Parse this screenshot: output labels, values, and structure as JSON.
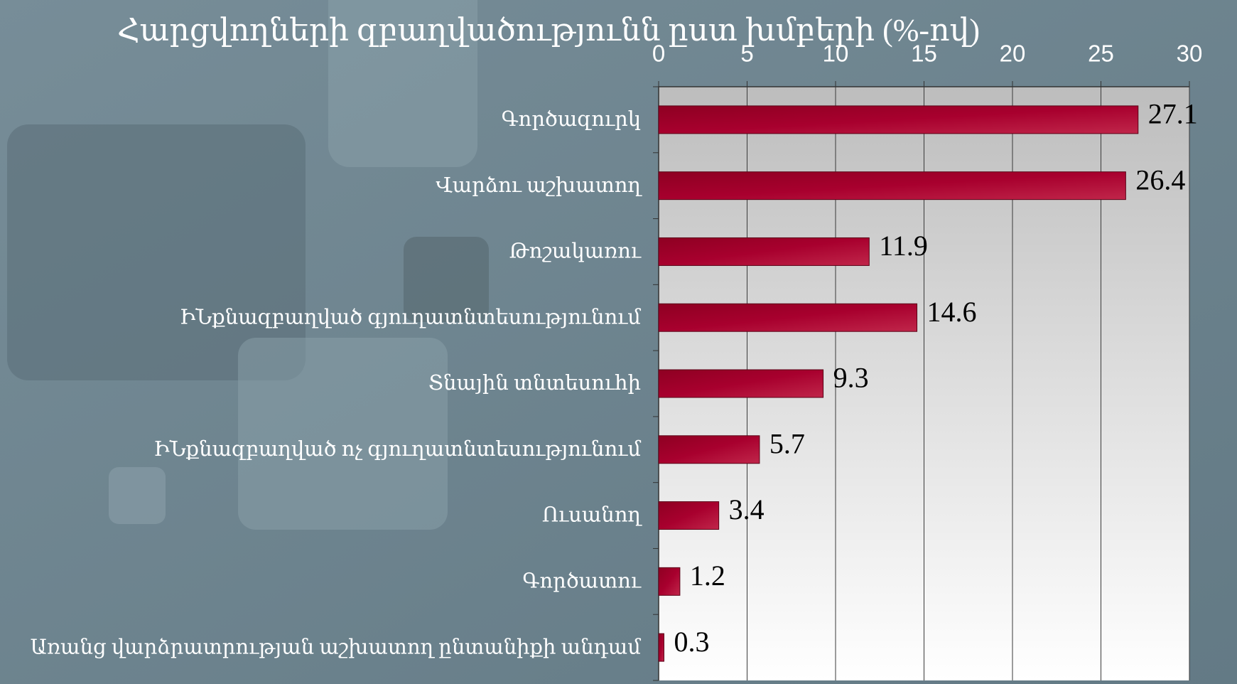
{
  "chart_data": {
    "type": "bar",
    "orientation": "horizontal",
    "title": "Հարցվողների զբաղվածությունն ըստ խմբերի (%-ով)",
    "categories": [
      "Գործազուրկ",
      "Վարձու աշխատող",
      "Թոշակառու",
      "ԻՆքնազբաղված գյուղատնտեսությունում",
      "Տնային տնտեսուհի",
      "ԻՆքնազբաղված ոչ գյուղատնտեսությունում",
      "Ուսանող",
      "Գործատու",
      "Առանց վարձրատրության աշխատող ընտանիքի անդամ"
    ],
    "values": [
      27.1,
      26.4,
      11.9,
      14.6,
      9.3,
      5.7,
      3.4,
      1.2,
      0.3
    ],
    "color": "#a0002c",
    "xlim": [
      0,
      30
    ],
    "xticks": [
      0,
      5,
      10,
      15,
      20,
      25,
      30
    ],
    "grid": true
  }
}
